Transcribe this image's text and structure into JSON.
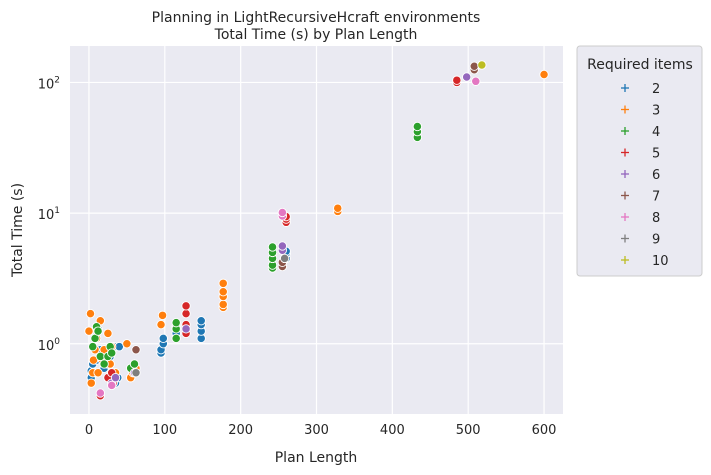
{
  "chart_data": {
    "type": "scatter",
    "title": "Planning in LightRecursiveHcraft environments",
    "subtitle": "Total Time (s) by Plan Length",
    "xlabel": "Plan Length",
    "ylabel": "Total Time (s)",
    "xlim": [
      -25,
      625
    ],
    "ylim": [
      0.29,
      190
    ],
    "yscale": "log",
    "grid": true,
    "xticks": [
      0,
      100,
      200,
      300,
      400,
      500,
      600
    ],
    "xtick_labels": [
      "0",
      "100",
      "200",
      "300",
      "400",
      "500",
      "600"
    ],
    "yticks": [
      1,
      10,
      100
    ],
    "ytick_label_base": [
      "10",
      "10",
      "10"
    ],
    "ytick_label_exp": [
      "0",
      "1",
      "2"
    ],
    "legend": {
      "title": "Required items",
      "placement": "outside-right"
    },
    "series": [
      {
        "name": "2",
        "color": "#1f77b4",
        "points": [
          [
            3,
            0.55
          ],
          [
            3,
            0.62
          ],
          [
            5,
            0.7
          ],
          [
            8,
            0.6
          ],
          [
            10,
            0.75
          ],
          [
            12,
            1.3
          ],
          [
            15,
            0.8
          ],
          [
            15,
            0.9
          ],
          [
            18,
            0.75
          ],
          [
            20,
            0.65
          ],
          [
            25,
            0.7
          ],
          [
            28,
            0.8
          ],
          [
            30,
            0.9
          ],
          [
            33,
            0.95
          ],
          [
            35,
            0.6
          ],
          [
            35,
            0.5
          ],
          [
            38,
            0.55
          ],
          [
            40,
            0.95
          ],
          [
            55,
            0.55
          ],
          [
            58,
            0.6
          ],
          [
            60,
            0.7
          ],
          [
            95,
            0.85
          ],
          [
            95,
            0.9
          ],
          [
            98,
            1.0
          ],
          [
            98,
            1.1
          ],
          [
            115,
            1.2
          ],
          [
            115,
            1.35
          ],
          [
            148,
            1.1
          ],
          [
            148,
            1.25
          ],
          [
            148,
            1.4
          ],
          [
            148,
            1.5
          ],
          [
            260,
            4.5
          ],
          [
            260,
            4.9
          ],
          [
            260,
            5.1
          ]
        ]
      },
      {
        "name": "3",
        "color": "#ff7f0e",
        "points": [
          [
            0,
            1.25
          ],
          [
            2,
            1.7
          ],
          [
            3,
            0.5
          ],
          [
            5,
            0.6
          ],
          [
            6,
            0.75
          ],
          [
            8,
            0.9
          ],
          [
            10,
            1.1
          ],
          [
            12,
            0.6
          ],
          [
            15,
            1.5
          ],
          [
            18,
            0.75
          ],
          [
            20,
            0.9
          ],
          [
            25,
            1.2
          ],
          [
            28,
            0.7
          ],
          [
            30,
            0.95
          ],
          [
            35,
            0.6
          ],
          [
            50,
            1.0
          ],
          [
            55,
            0.55
          ],
          [
            58,
            0.6
          ],
          [
            62,
            0.65
          ],
          [
            95,
            1.4
          ],
          [
            97,
            1.65
          ],
          [
            177,
            1.9
          ],
          [
            177,
            2.0
          ],
          [
            177,
            2.3
          ],
          [
            177,
            2.5
          ],
          [
            177,
            2.9
          ],
          [
            328,
            10.3
          ],
          [
            328,
            10.9
          ],
          [
            600,
            115
          ]
        ]
      },
      {
        "name": "4",
        "color": "#2ca02c",
        "points": [
          [
            5,
            0.95
          ],
          [
            8,
            1.1
          ],
          [
            10,
            1.35
          ],
          [
            12,
            1.25
          ],
          [
            15,
            0.8
          ],
          [
            20,
            0.7
          ],
          [
            25,
            0.8
          ],
          [
            28,
            0.95
          ],
          [
            30,
            0.85
          ],
          [
            55,
            0.65
          ],
          [
            60,
            0.7
          ],
          [
            115,
            1.1
          ],
          [
            115,
            1.3
          ],
          [
            115,
            1.45
          ],
          [
            242,
            3.8
          ],
          [
            242,
            4.0
          ],
          [
            242,
            4.5
          ],
          [
            242,
            5.0
          ],
          [
            242,
            5.5
          ],
          [
            433,
            38
          ],
          [
            433,
            42
          ],
          [
            433,
            46
          ]
        ]
      },
      {
        "name": "5",
        "color": "#d62728",
        "points": [
          [
            25,
            0.55
          ],
          [
            30,
            0.6
          ],
          [
            15,
            0.4
          ],
          [
            32,
            0.5
          ],
          [
            128,
            1.2
          ],
          [
            128,
            1.4
          ],
          [
            128,
            1.7
          ],
          [
            128,
            1.95
          ],
          [
            260,
            8.5
          ],
          [
            260,
            9.0
          ],
          [
            260,
            9.4
          ],
          [
            485,
            100
          ],
          [
            485,
            104
          ]
        ]
      },
      {
        "name": "6",
        "color": "#9467bd",
        "points": [
          [
            30,
            0.5
          ],
          [
            35,
            0.55
          ],
          [
            60,
            0.6
          ],
          [
            128,
            1.3
          ],
          [
            255,
            5.2
          ],
          [
            255,
            5.6
          ],
          [
            498,
            110
          ]
        ]
      },
      {
        "name": "7",
        "color": "#8c564b",
        "points": [
          [
            62,
            0.9
          ],
          [
            255,
            3.9
          ],
          [
            255,
            4.2
          ],
          [
            508,
            125
          ],
          [
            508,
            133
          ]
        ]
      },
      {
        "name": "8",
        "color": "#e377c2",
        "points": [
          [
            15,
            0.42
          ],
          [
            30,
            0.48
          ],
          [
            255,
            9.5
          ],
          [
            255,
            10.1
          ],
          [
            510,
            102
          ]
        ]
      },
      {
        "name": "9",
        "color": "#7f7f7f",
        "points": [
          [
            62,
            0.6
          ],
          [
            258,
            4.5
          ]
        ]
      },
      {
        "name": "10",
        "color": "#bcbd22",
        "points": [
          [
            518,
            136
          ]
        ]
      }
    ]
  }
}
